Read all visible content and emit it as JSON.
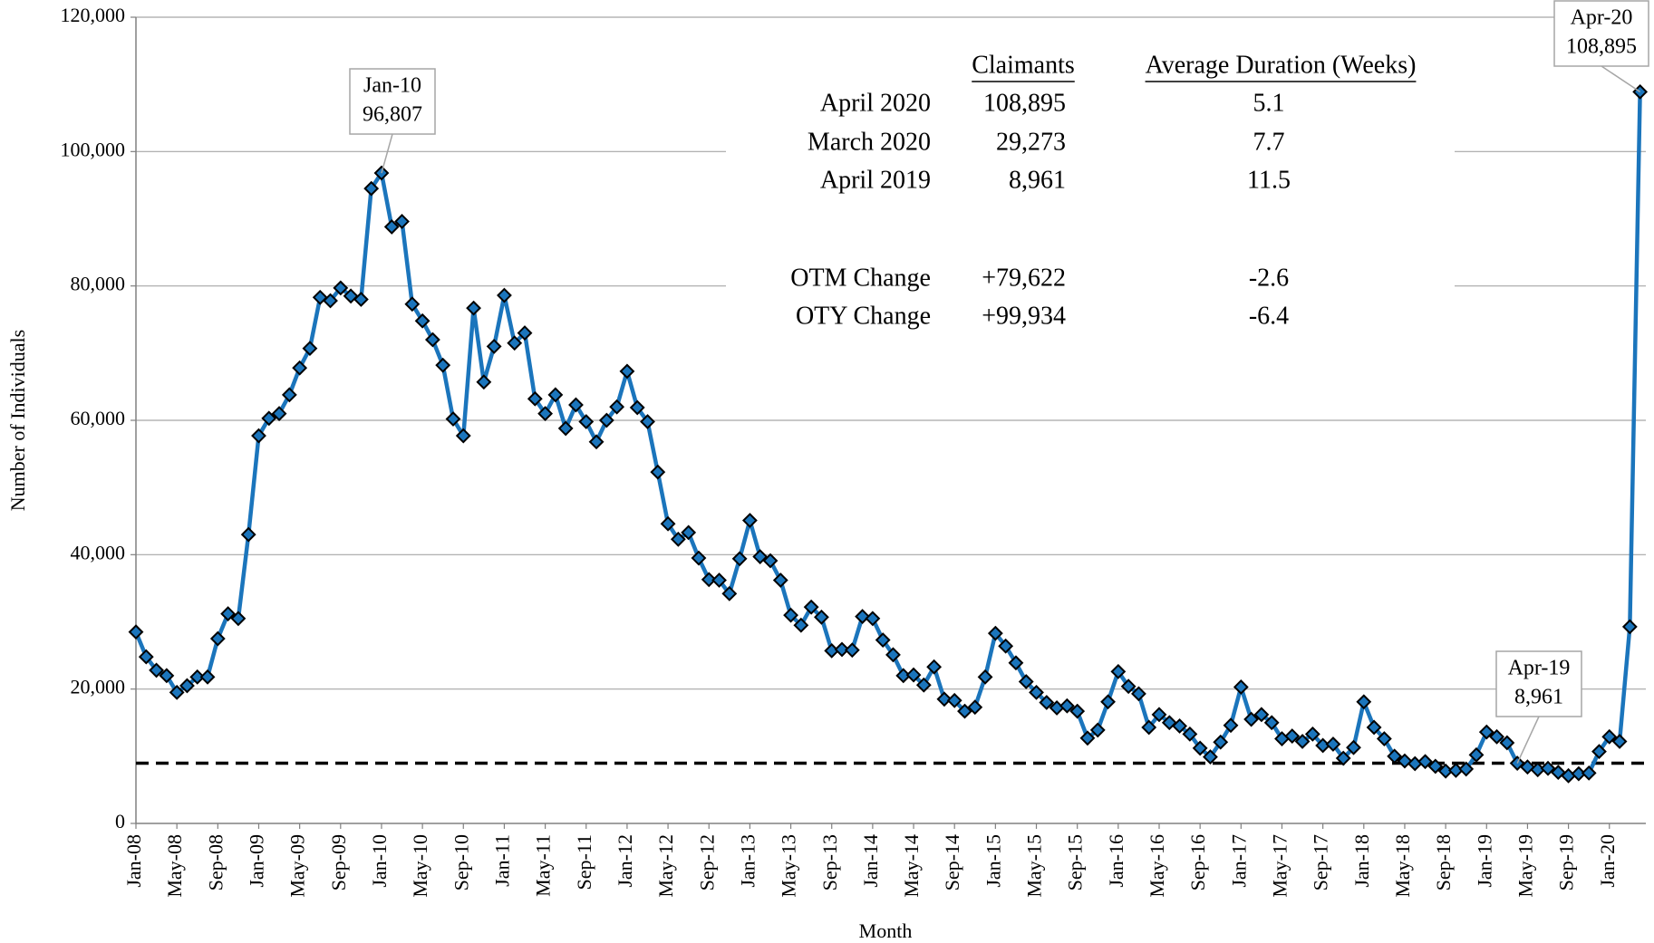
{
  "chart_data": {
    "type": "line",
    "ylabel": "Number of Individuals",
    "xlabel": "Month",
    "categories": [
      "Jan-08",
      null,
      null,
      null,
      "May-08",
      null,
      null,
      null,
      "Sep-08",
      null,
      null,
      null,
      "Jan-09",
      null,
      null,
      null,
      "May-09",
      null,
      null,
      null,
      "Sep-09",
      null,
      null,
      null,
      "Jan-10",
      null,
      null,
      null,
      "May-10",
      null,
      null,
      null,
      "Sep-10",
      null,
      null,
      null,
      "Jan-11",
      null,
      null,
      null,
      "May-11",
      null,
      null,
      null,
      "Sep-11",
      null,
      null,
      null,
      "Jan-12",
      null,
      null,
      null,
      "May-12",
      null,
      null,
      null,
      "Sep-12",
      null,
      null,
      null,
      "Jan-13",
      null,
      null,
      null,
      "May-13",
      null,
      null,
      null,
      "Sep-13",
      null,
      null,
      null,
      "Jan-14",
      null,
      null,
      null,
      "May-14",
      null,
      null,
      null,
      "Sep-14",
      null,
      null,
      null,
      "Jan-15",
      null,
      null,
      null,
      "May-15",
      null,
      null,
      null,
      "Sep-15",
      null,
      null,
      null,
      "Jan-16",
      null,
      null,
      null,
      "May-16",
      null,
      null,
      null,
      "Sep-16",
      null,
      null,
      null,
      "Jan-17",
      null,
      null,
      null,
      "May-17",
      null,
      null,
      null,
      "Sep-17",
      null,
      null,
      null,
      "Jan-18",
      null,
      null,
      null,
      "May-18",
      null,
      null,
      null,
      "Sep-18",
      null,
      null,
      null,
      "Jan-19",
      null,
      null,
      null,
      "May-19",
      null,
      null,
      null,
      "Sep-19",
      null,
      null,
      null,
      "Jan-20",
      null,
      null,
      null
    ],
    "series": [
      {
        "name": "Claimants",
        "color": "#1b75bc",
        "values": [
          28500,
          24800,
          22800,
          22000,
          19500,
          20500,
          21800,
          21800,
          27500,
          31200,
          30500,
          43000,
          57700,
          60300,
          61000,
          63800,
          67800,
          70700,
          78300,
          77800,
          79700,
          78500,
          78000,
          94500,
          96807,
          88800,
          89600,
          77300,
          74800,
          72000,
          68200,
          60200,
          57700,
          76700,
          65700,
          71000,
          78600,
          71500,
          73000,
          63200,
          61000,
          63800,
          58800,
          62300,
          59800,
          56800,
          60000,
          62000,
          67300,
          61900,
          59800,
          52300,
          44600,
          42300,
          43300,
          39500,
          36300,
          36200,
          34200,
          39400,
          45100,
          39700,
          39100,
          36200,
          31000,
          29500,
          32200,
          30700,
          25700,
          25900,
          25800,
          30800,
          30500,
          27300,
          25100,
          22000,
          22100,
          20600,
          23300,
          18500,
          18300,
          16700,
          17300,
          21800,
          28300,
          26400,
          23900,
          21100,
          19500,
          18000,
          17200,
          17500,
          16700,
          12700,
          13900,
          18100,
          22600,
          20400,
          19300,
          14300,
          16200,
          15000,
          14500,
          13300,
          11200,
          9900,
          12100,
          14600,
          20300,
          15500,
          16200,
          15000,
          12600,
          13000,
          12200,
          13300,
          11600,
          11800,
          9700,
          11300,
          18100,
          14300,
          12600,
          10000,
          9300,
          8900,
          9200,
          8500,
          7800,
          7900,
          8100,
          10200,
          13600,
          12900,
          12000,
          8961,
          8400,
          8000,
          8200,
          7600,
          7100,
          7400,
          7500,
          10700,
          12900,
          12200,
          29273,
          108895
        ]
      }
    ],
    "reference_line": {
      "value": 8961,
      "color": "#000000"
    },
    "ylim": [
      0,
      120000
    ],
    "yticks": [
      0,
      {
        "value": 20000,
        "label": "20,000"
      },
      {
        "value": 40000,
        "label": "40,000"
      },
      {
        "value": 60000,
        "label": "60,000"
      },
      {
        "value": 80000,
        "label": "80,000"
      },
      {
        "value": 100000,
        "label": "100,000"
      },
      {
        "value": 120000,
        "label": "120,000"
      }
    ],
    "grid": true,
    "annotations": [
      {
        "label": "Jan-10",
        "text": "96,807"
      },
      {
        "label": "Apr-19",
        "text": "8,961"
      },
      {
        "label": "Apr-20",
        "text": "108,895"
      }
    ],
    "table": {
      "headers": [
        "Claimants",
        "Average Duration (Weeks)"
      ],
      "rows": [
        [
          "April 2020",
          "108,895",
          "5.1"
        ],
        [
          "March 2020",
          "29,273",
          "7.7"
        ],
        [
          "April 2019",
          "8,961",
          "11.5"
        ],
        [
          "OTM Change",
          "+79,622",
          "-2.6"
        ],
        [
          "OTY Change",
          "+99,934",
          "-6.4"
        ]
      ]
    }
  }
}
